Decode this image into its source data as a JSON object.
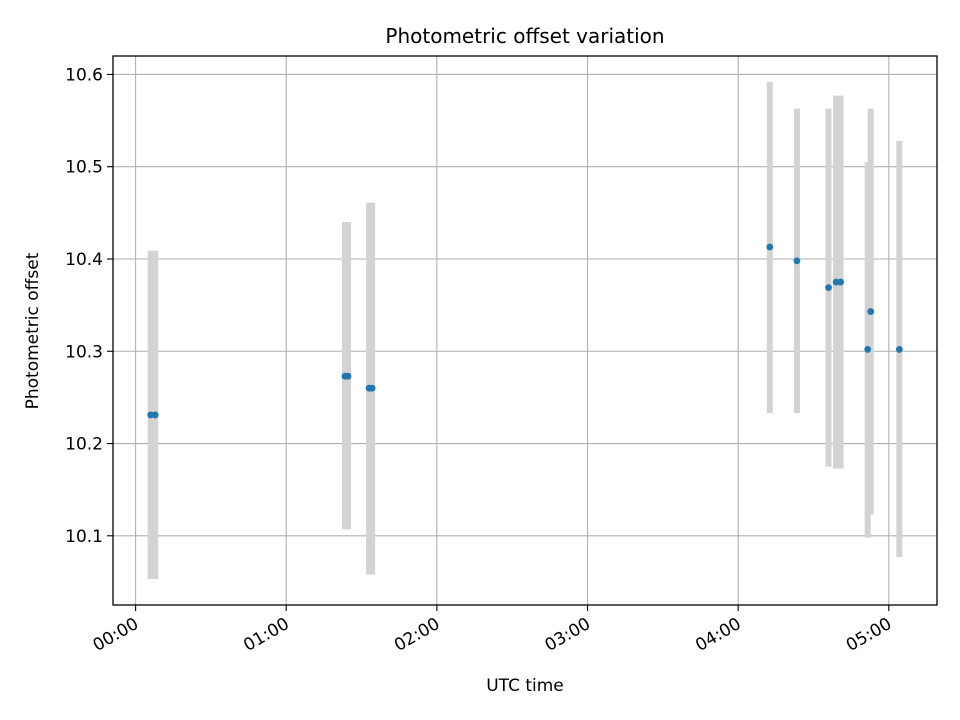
{
  "chart_data": {
    "type": "scatter",
    "title": "Photometric offset variation",
    "xlabel": "UTC time",
    "ylabel": "Photometric offset",
    "x_unit": "hours",
    "xlim": [
      -0.15,
      5.32
    ],
    "ylim": [
      10.025,
      10.62
    ],
    "x_ticks": [
      0,
      1,
      2,
      3,
      4,
      5
    ],
    "x_tick_labels": [
      "00:00",
      "01:00",
      "02:00",
      "03:00",
      "04:00",
      "05:00"
    ],
    "y_ticks": [
      10.1,
      10.2,
      10.3,
      10.4,
      10.5,
      10.6
    ],
    "y_tick_labels": [
      "10.1",
      "10.2",
      "10.3",
      "10.4",
      "10.5",
      "10.6"
    ],
    "grid": true,
    "point_color": "#1f77b4",
    "errorbar_color": "#d3d3d3",
    "points": [
      {
        "x": 0.1,
        "y": 10.231,
        "low": 10.053,
        "high": 10.409
      },
      {
        "x": 0.13,
        "y": 10.231,
        "low": 10.053,
        "high": 10.409
      },
      {
        "x": 1.39,
        "y": 10.273,
        "low": 10.107,
        "high": 10.44
      },
      {
        "x": 1.41,
        "y": 10.273,
        "low": 10.107,
        "high": 10.44
      },
      {
        "x": 1.55,
        "y": 10.26,
        "low": 10.058,
        "high": 10.461
      },
      {
        "x": 1.57,
        "y": 10.26,
        "low": 10.058,
        "high": 10.461
      },
      {
        "x": 4.21,
        "y": 10.413,
        "low": 10.233,
        "high": 10.592
      },
      {
        "x": 4.39,
        "y": 10.398,
        "low": 10.233,
        "high": 10.563
      },
      {
        "x": 4.6,
        "y": 10.369,
        "low": 10.175,
        "high": 10.563
      },
      {
        "x": 4.65,
        "y": 10.375,
        "low": 10.173,
        "high": 10.577
      },
      {
        "x": 4.68,
        "y": 10.375,
        "low": 10.173,
        "high": 10.577
      },
      {
        "x": 4.86,
        "y": 10.302,
        "low": 10.098,
        "high": 10.505
      },
      {
        "x": 4.88,
        "y": 10.343,
        "low": 10.123,
        "high": 10.563
      },
      {
        "x": 5.07,
        "y": 10.302,
        "low": 10.077,
        "high": 10.528
      }
    ]
  }
}
